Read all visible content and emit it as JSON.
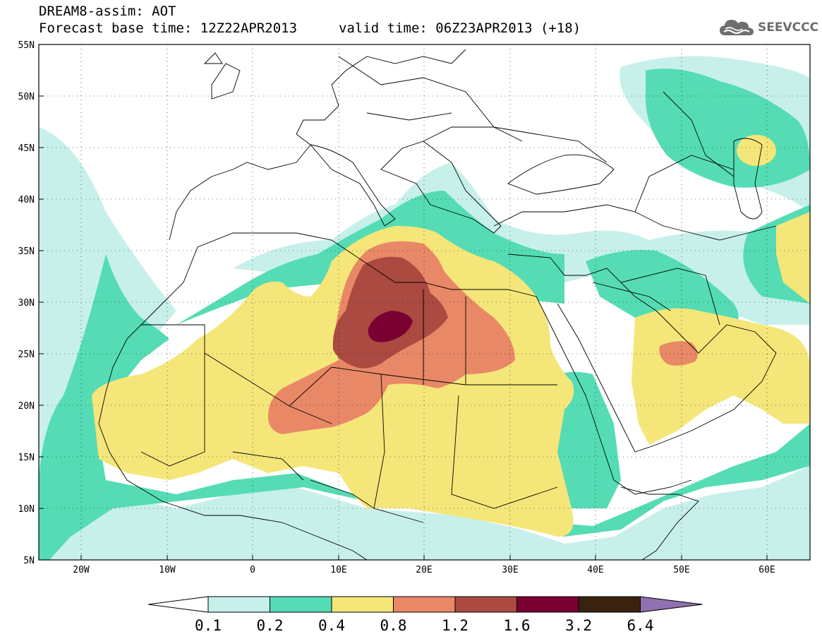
{
  "header": {
    "title_line1": "DREAM8-assim: AOT",
    "title_line2": "Forecast base time: 12Z22APR2013",
    "valid_time": "valid time: 06Z23APR2013 (+18)"
  },
  "logo": {
    "text": "SEEVCCC",
    "icon": "cloud-icon"
  },
  "map": {
    "variable": "AOT",
    "lat_range": [
      5,
      55
    ],
    "lon_range": [
      -25,
      65
    ],
    "lat_ticks": [
      "55N",
      "50N",
      "45N",
      "40N",
      "35N",
      "30N",
      "25N",
      "20N",
      "15N",
      "10N",
      "5N"
    ],
    "lon_ticks": [
      "20W",
      "10W",
      "0",
      "10E",
      "20E",
      "30E",
      "40E",
      "50E",
      "60E"
    ],
    "grid": "dotted"
  },
  "colorbar": {
    "levels": [
      "0.1",
      "0.2",
      "0.4",
      "0.8",
      "1.2",
      "1.6",
      "3.2",
      "6.4"
    ],
    "colors": [
      "#c8f0ea",
      "#55dcb4",
      "#f5e67a",
      "#e88866",
      "#aa4a40",
      "#7a0032",
      "#3a2210",
      "#9070b0"
    ],
    "below_color": "#ffffff"
  }
}
